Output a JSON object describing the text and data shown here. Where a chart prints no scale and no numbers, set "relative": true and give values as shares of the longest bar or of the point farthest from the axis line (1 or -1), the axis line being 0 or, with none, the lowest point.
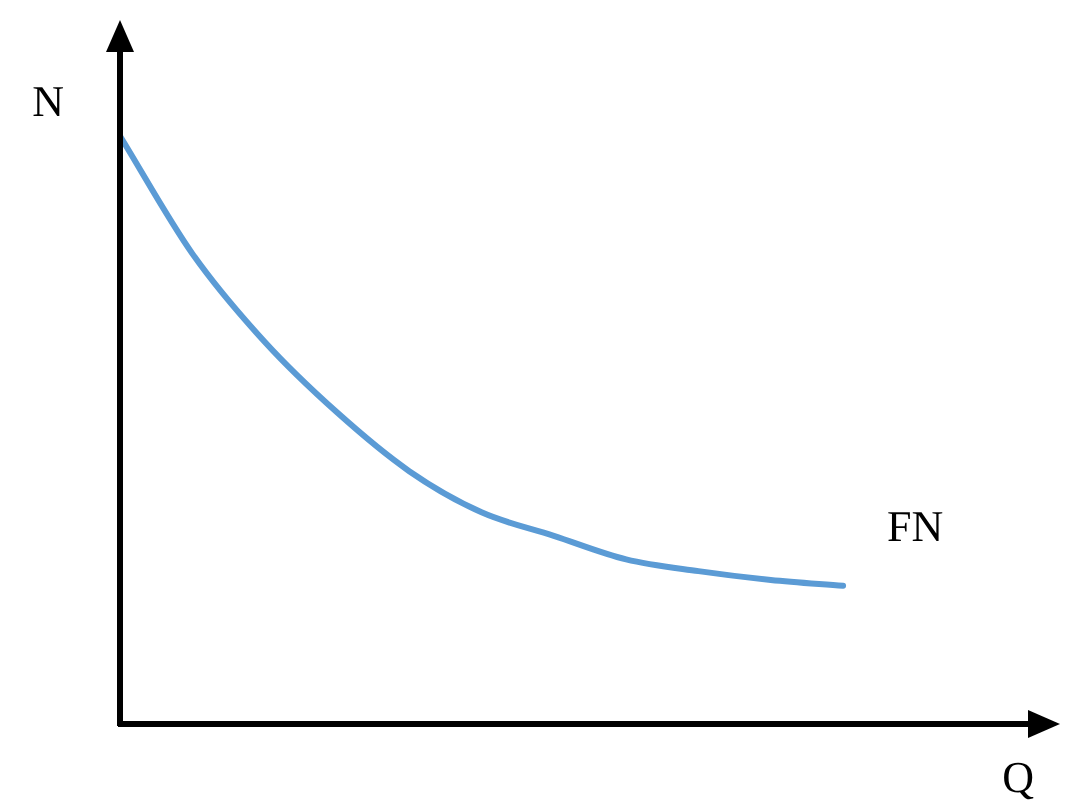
{
  "chart_data": {
    "type": "line",
    "relative": true,
    "xlabel": "Q",
    "ylabel": "N",
    "categories": [
      null,
      null,
      null,
      null,
      null,
      null,
      null,
      null,
      null,
      null,
      null,
      null,
      null,
      null
    ],
    "series": [
      {
        "color": "#5b9bd5",
        "values": [
          1,
          0.8,
          0.65,
          0.53,
          0.43,
          0.36,
          0.32,
          0.28,
          0.26,
          0.245,
          0.235,
          null,
          null,
          null
        ]
      }
    ],
    "annotations": [
      "FN"
    ],
    "legend": false,
    "marker": "none",
    "line_style": "solid"
  }
}
